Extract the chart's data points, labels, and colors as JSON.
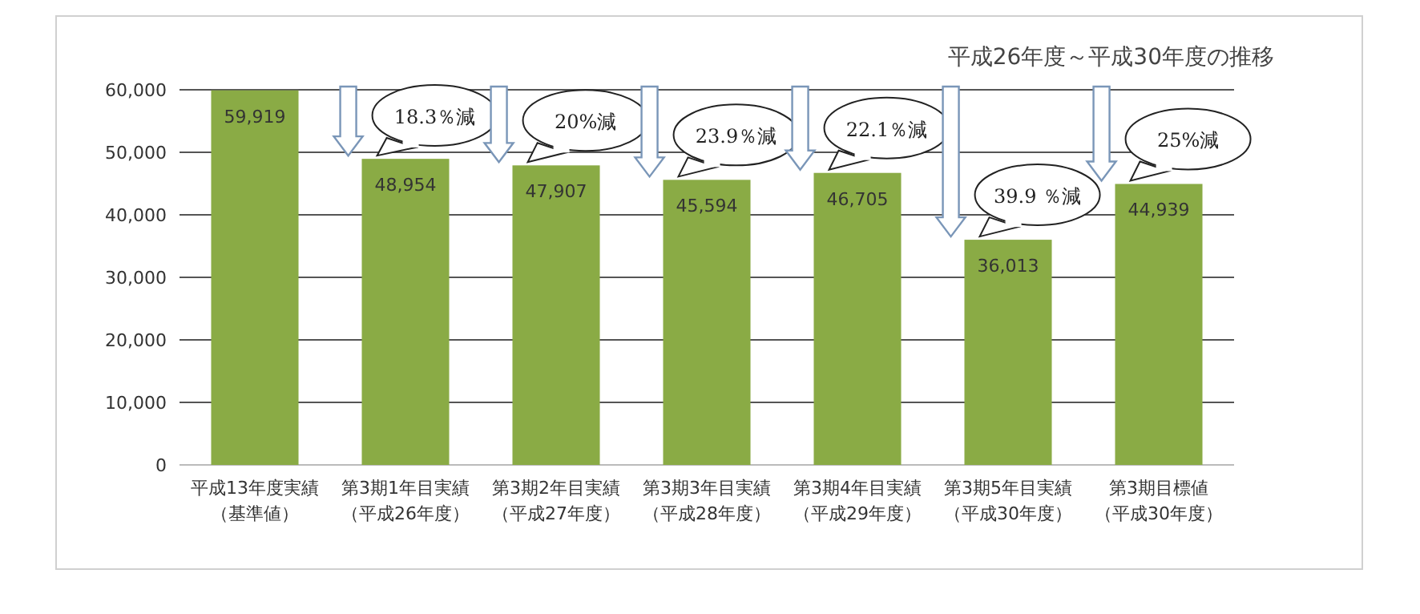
{
  "chart_data": {
    "type": "bar",
    "title": "平成26年度～平成30年度の推移",
    "categories": [
      "平成13年度実績（基準値）",
      "第3期1年目実績（平成26年度）",
      "第3期2年目実績（平成27年度）",
      "第3期3年目実績（平成28年度）",
      "第3期4年目実績（平成29年度）",
      "第3期5年目実績（平成30年度）",
      "第3期目標値（平成30年度）"
    ],
    "values": [
      59919,
      48954,
      47907,
      45594,
      46705,
      36013,
      44939
    ],
    "color": "#8aab45",
    "ylim": [
      0,
      60000
    ],
    "yticks": [
      {
        "value": 0,
        "label": "0"
      },
      {
        "value": 10000,
        "label": "10,000"
      },
      {
        "value": 20000,
        "label": "20,000"
      },
      {
        "value": 30000,
        "label": "30,000"
      },
      {
        "value": 40000,
        "label": "40,000"
      },
      {
        "value": 50000,
        "label": "50,000"
      },
      {
        "value": 60000,
        "label": "60,000"
      }
    ],
    "grid": "y",
    "value_labels": [
      "59,919",
      "48,954",
      "47,907",
      "45,594",
      "46,705",
      "36,013",
      "44,939"
    ],
    "annotations": [
      {
        "text": "18.3％減",
        "x": "第3期1年目実績（平成26年度）",
        "y": 48954
      },
      {
        "text": "20%減",
        "x": "第3期2年目実績（平成27年度）",
        "y": 47907
      },
      {
        "text": "23.9％減",
        "x": "第3期3年目実績（平成28年度）",
        "y": 45594
      },
      {
        "text": "22.1％減",
        "x": "第3期4年目実績（平成29年度）",
        "y": 46705
      },
      {
        "text": "39.9 ％減",
        "x": "第3期5年目実績（平成30年度）",
        "y": 36013
      },
      {
        "text": "25%減",
        "x": "第3期目標値（平成30年度）",
        "y": 44939
      }
    ]
  }
}
